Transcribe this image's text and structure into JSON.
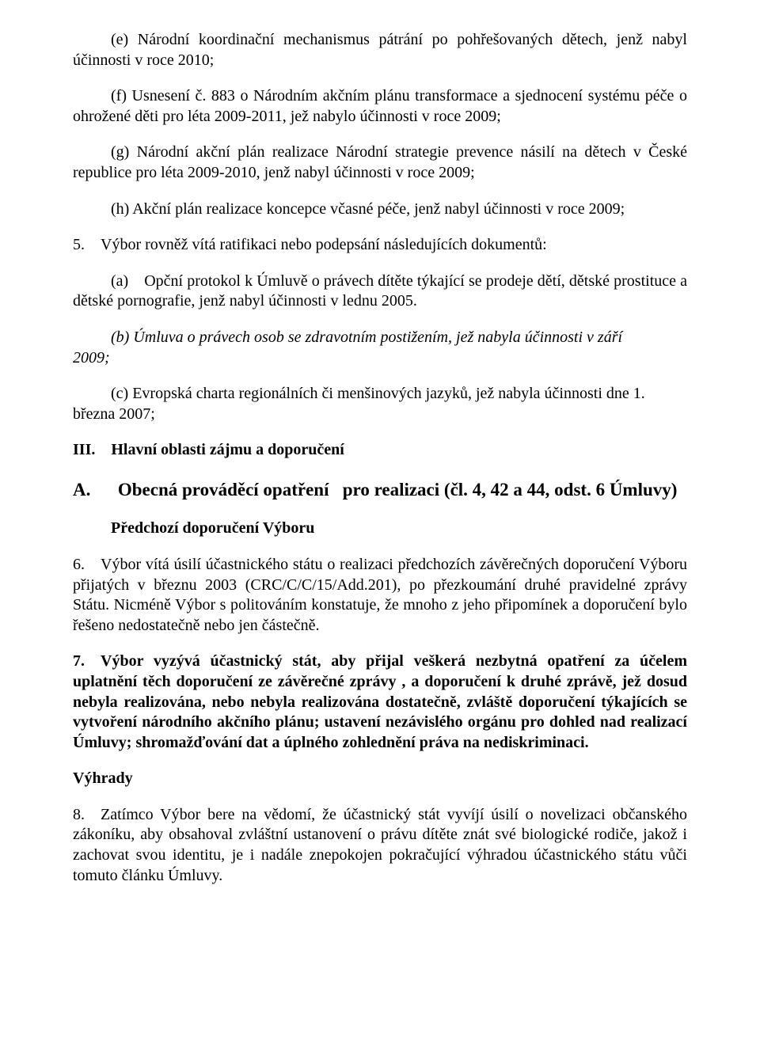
{
  "p_e": "(e) Národní koordinační mechanismus pátrání po pohřešovaných dětech, jenž nabyl účinnosti v roce 2010;",
  "p_f": "(f) Usnesení č. 883 o Národním akčním plánu transformace a sjednocení systému péče o ohrožené děti pro léta 2009-2011, jež nabylo účinnosti v roce 2009;",
  "p_g": "(g) Národní akční plán realizace Národní strategie prevence násilí na dětech v České republice pro léta 2009-2010, jenž nabyl účinnosti v roce 2009;",
  "p_h": "(h) Akční plán realizace koncepce včasné péče, jenž nabyl účinnosti v roce 2009;",
  "p_5": "5. Výbor rovněž vítá ratifikaci nebo podepsání následujících dokumentů:",
  "p_5a": "(a) Opční protokol k Úmluvě o právech dítěte týkající se prodeje dětí, dětské prostituce a dětské pornografie, jenž nabyl účinnosti v lednu 2005.",
  "p_5b_years": "2009;",
  "p_5b_text": "(b) Úmluva o právech osob se zdravotním postižením, jež nabyla účinnosti v září",
  "p_5c_text": "(c) Evropská charta regionálních či menšinových jazyků, jež nabyla účinnosti dne 1.",
  "p_5c_date": "března 2007;",
  "h_III": "III. Hlavní oblasti zájmu a doporučení",
  "h_A": "A.  Obecná prováděcí opatření  pro realizaci (čl. 4, 42 a 44, odst. 6 Úmluvy)",
  "h_prev": "Předchozí doporučení Výboru",
  "p_6": "6. Výbor vítá úsilí účastnického státu o realizaci předchozích závěrečných doporučení Výboru přijatých v březnu 2003 (CRC/C/C/15/Add.201), po přezkoumání druhé pravidelné zprávy Státu. Nicméně Výbor s politováním konstatuje, že mnoho z jeho připomínek a doporučení bylo řešeno nedostatečně nebo jen částečně.",
  "p_7": "7. Výbor vyzývá účastnický stát, aby přijal veškerá nezbytná opatření za účelem uplatnění těch doporučení ze závěrečné zprávy , a doporučení k druhé zprávě, jež dosud nebyla realizována, nebo nebyla realizována dostatečně, zvláště doporučení týkajících se vytvoření národního akčního plánu; ustavení nezávislého orgánu pro dohled nad realizací Úmluvy; shromažďování dat a úplného zohlednění  práva na nediskriminaci.",
  "h_vyhrady": "Výhrady",
  "p_8": "8. Zatímco Výbor bere na vědomí, že účastnický stát vyvíjí úsilí o novelizaci občanského zákoníku, aby obsahoval zvláštní ustanovení o právu dítěte znát své biologické rodiče, jakož i zachovat svou identitu, je i nadále znepokojen pokračující výhradou účastnického státu vůči tomuto článku Úmluvy."
}
